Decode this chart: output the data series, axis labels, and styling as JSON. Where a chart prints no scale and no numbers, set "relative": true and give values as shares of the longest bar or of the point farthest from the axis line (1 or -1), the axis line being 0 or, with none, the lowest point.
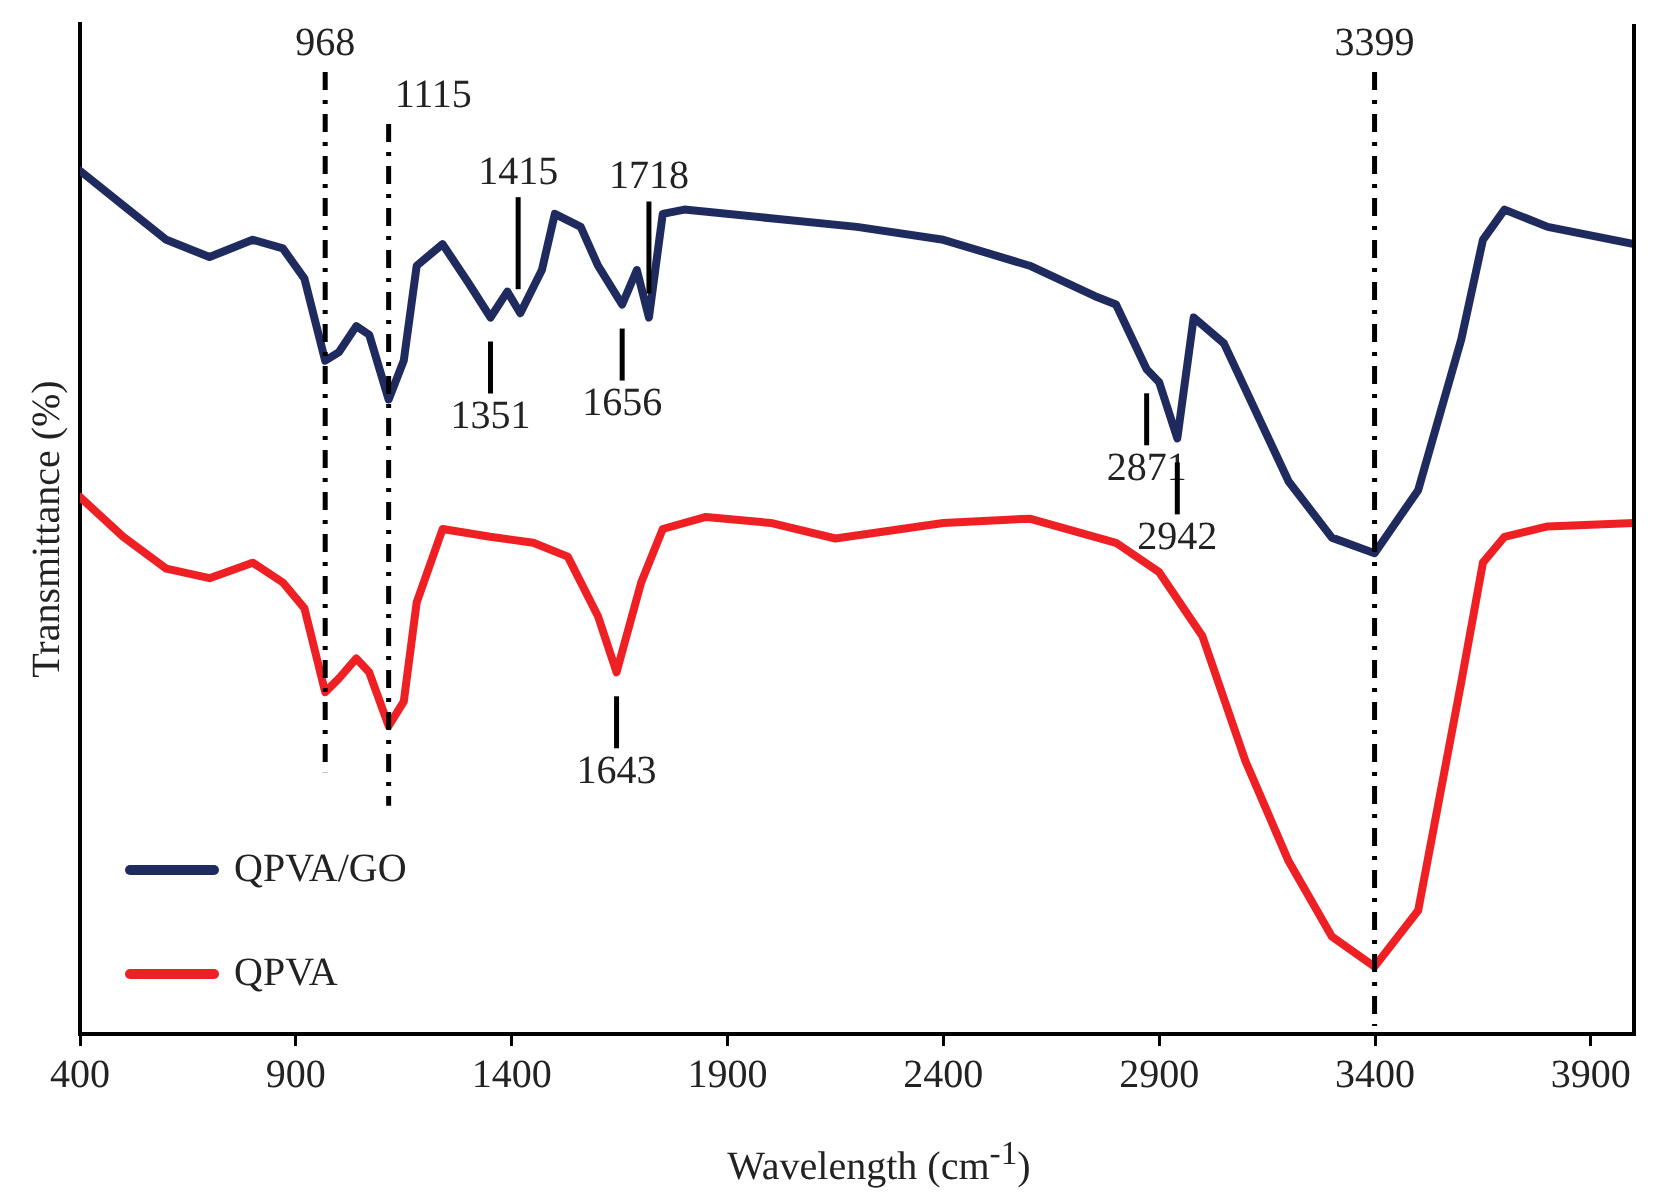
{
  "chart_data": {
    "type": "line",
    "relative": true,
    "xlabel": "Wavelength (cm$^{-1}$)",
    "ylabel": "Transmittance (%)",
    "xlim": [
      400,
      4000
    ],
    "xticks": [
      400,
      900,
      1400,
      1900,
      2400,
      2900,
      3400,
      3900
    ],
    "legend": "bottom left",
    "marker": "none",
    "line_style": "solid",
    "grid": false,
    "tick_labels": "x",
    "series": [
      {
        "name": "QPVA/GO",
        "color": "#1f2a5e",
        "x": [
          400,
          500,
          600,
          700,
          800,
          870,
          920,
          968,
          1000,
          1040,
          1070,
          1115,
          1150,
          1180,
          1240,
          1300,
          1351,
          1390,
          1420,
          1470,
          1500,
          1560,
          1600,
          1656,
          1690,
          1718,
          1750,
          1800,
          2000,
          2200,
          2400,
          2600,
          2750,
          2800,
          2871,
          2900,
          2942,
          2980,
          3050,
          3200,
          3300,
          3399,
          3500,
          3600,
          3650,
          3700,
          3800,
          4000
        ],
        "values": [
          1.0,
          0.96,
          0.92,
          0.9,
          0.92,
          0.91,
          0.875,
          0.78,
          0.79,
          0.82,
          0.81,
          0.735,
          0.78,
          0.89,
          0.915,
          0.87,
          0.83,
          0.86,
          0.835,
          0.885,
          0.95,
          0.935,
          0.89,
          0.845,
          0.885,
          0.83,
          0.95,
          0.955,
          0.945,
          0.935,
          0.92,
          0.89,
          0.855,
          0.845,
          0.77,
          0.755,
          0.69,
          0.83,
          0.8,
          0.64,
          0.575,
          0.557,
          0.63,
          0.805,
          0.92,
          0.955,
          0.935,
          0.915
        ]
      },
      {
        "name": "QPVA",
        "color": "#ee2024",
        "x": [
          400,
          500,
          600,
          700,
          800,
          870,
          920,
          968,
          1000,
          1040,
          1070,
          1115,
          1150,
          1180,
          1240,
          1350,
          1450,
          1530,
          1600,
          1643,
          1700,
          1750,
          1850,
          2000,
          2150,
          2400,
          2600,
          2800,
          2900,
          3000,
          3100,
          3200,
          3300,
          3399,
          3500,
          3600,
          3650,
          3700,
          3800,
          4000
        ],
        "values": [
          0.622,
          0.576,
          0.539,
          0.528,
          0.546,
          0.523,
          0.493,
          0.396,
          0.412,
          0.435,
          0.419,
          0.357,
          0.385,
          0.5,
          0.585,
          0.576,
          0.569,
          0.553,
          0.484,
          0.419,
          0.523,
          0.585,
          0.599,
          0.592,
          0.574,
          0.592,
          0.597,
          0.569,
          0.535,
          0.461,
          0.316,
          0.2,
          0.113,
          0.078,
          0.143,
          0.408,
          0.546,
          0.576,
          0.588,
          0.592
        ]
      }
    ],
    "ref_lines": [
      {
        "axis": "x",
        "value": 968,
        "label": "968",
        "line_style": "dashdot"
      },
      {
        "axis": "x",
        "value": 1115,
        "label": "1115",
        "line_style": "dashdot"
      },
      {
        "axis": "x",
        "value": 3399,
        "label": "3399",
        "line_style": "dashdot"
      }
    ],
    "annotations": [
      {
        "text": "1351",
        "x": 1351,
        "y": 0.83
      },
      {
        "text": "1415",
        "x": 1415,
        "y": 0.835
      },
      {
        "text": "1656",
        "x": 1656,
        "y": 0.845
      },
      {
        "text": "1718",
        "x": 1718,
        "y": 0.83
      },
      {
        "text": "1643",
        "x": 1643,
        "y": 0.419
      },
      {
        "text": "2871",
        "x": 2871,
        "y": 0.77
      },
      {
        "text": "2942",
        "x": 2942,
        "y": 0.69
      }
    ]
  }
}
